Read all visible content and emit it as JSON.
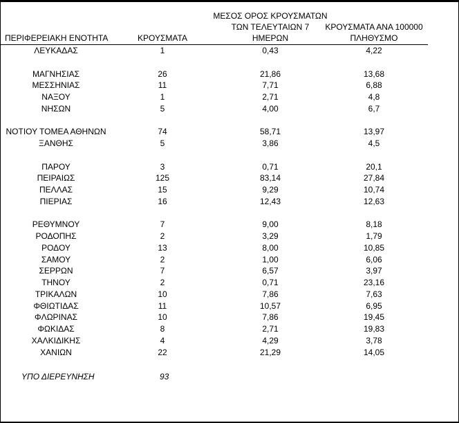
{
  "header": {
    "region": "ΠΕΡΙΦΕΡΕΙΑΚΗ ΕΝΟΤΗΤΑ",
    "cases": "ΚΡΟΥΣΜΑΤΑ",
    "avg7_lines": [
      "ΜΕΣΟΣ ΟΡΟΣ ΚΡΟΥΣΜΑΤΩΝ",
      "ΤΩΝ ΤΕΛΕΥΤΑΙΩΝ 7",
      "ΗΜΕΡΩΝ"
    ],
    "per100k_lines": [
      "ΚΡΟΥΣΜΑΤΑ ΑΝΑ 100000",
      "ΠΛΗΘΥΣΜΟ"
    ]
  },
  "rows": [
    [
      "ΛΕΥΚΑΔΑΣ",
      "1",
      "0,43",
      "4,22"
    ],
    null,
    [
      "ΜΑΓΝΗΣΙΑΣ",
      "26",
      "21,86",
      "13,68"
    ],
    [
      "ΜΕΣΣΗΝΙΑΣ",
      "11",
      "7,71",
      "6,88"
    ],
    [
      "ΝΑΞΟΥ",
      "1",
      "2,71",
      "4,8"
    ],
    [
      "ΝΗΣΩΝ",
      "5",
      "4,00",
      "6,7"
    ],
    null,
    [
      "ΝΟΤΙΟΥ ΤΟΜΕΑ ΑΘΗΝΩΝ",
      "74",
      "58,71",
      "13,97"
    ],
    [
      "ΞΑΝΘΗΣ",
      "5",
      "3,86",
      "4,5"
    ],
    null,
    [
      "ΠΑΡΟΥ",
      "3",
      "0,71",
      "20,1"
    ],
    [
      "ΠΕΙΡΑΙΩΣ",
      "125",
      "83,14",
      "27,84"
    ],
    [
      "ΠΕΛΛΑΣ",
      "15",
      "9,29",
      "10,74"
    ],
    [
      "ΠΙΕΡΙΑΣ",
      "16",
      "12,43",
      "12,63"
    ],
    null,
    [
      "ΡΕΘΥΜΝΟΥ",
      "7",
      "9,00",
      "8,18"
    ],
    [
      "ΡΟΔΟΠΗΣ",
      "2",
      "3,29",
      "1,79"
    ],
    [
      "ΡΟΔΟΥ",
      "13",
      "8,00",
      "10,85"
    ],
    [
      "ΣΑΜΟΥ",
      "2",
      "1,00",
      "6,06"
    ],
    [
      "ΣΕΡΡΩΝ",
      "7",
      "6,57",
      "3,97"
    ],
    [
      "ΤΗΝΟΥ",
      "2",
      "0,71",
      "23,16"
    ],
    [
      "ΤΡΙΚΑΛΩΝ",
      "10",
      "7,86",
      "7,63"
    ],
    [
      "ΦΘΙΩΤΙΔΑΣ",
      "11",
      "10,57",
      "6,95"
    ],
    [
      "ΦΛΩΡΙΝΑΣ",
      "10",
      "7,86",
      "19,45"
    ],
    [
      "ΦΩΚΙΔΑΣ",
      "8",
      "2,71",
      "19,83"
    ],
    [
      "ΧΑΛΚΙΔΙΚΗΣ",
      "4",
      "4,29",
      "3,78"
    ],
    [
      "ΧΑΝΙΩΝ",
      "22",
      "21,29",
      "14,05"
    ],
    null
  ],
  "note": {
    "label": "ΥΠΟ ΔΙΕΡΕΥΝΗΣΗ",
    "cases": "93"
  }
}
